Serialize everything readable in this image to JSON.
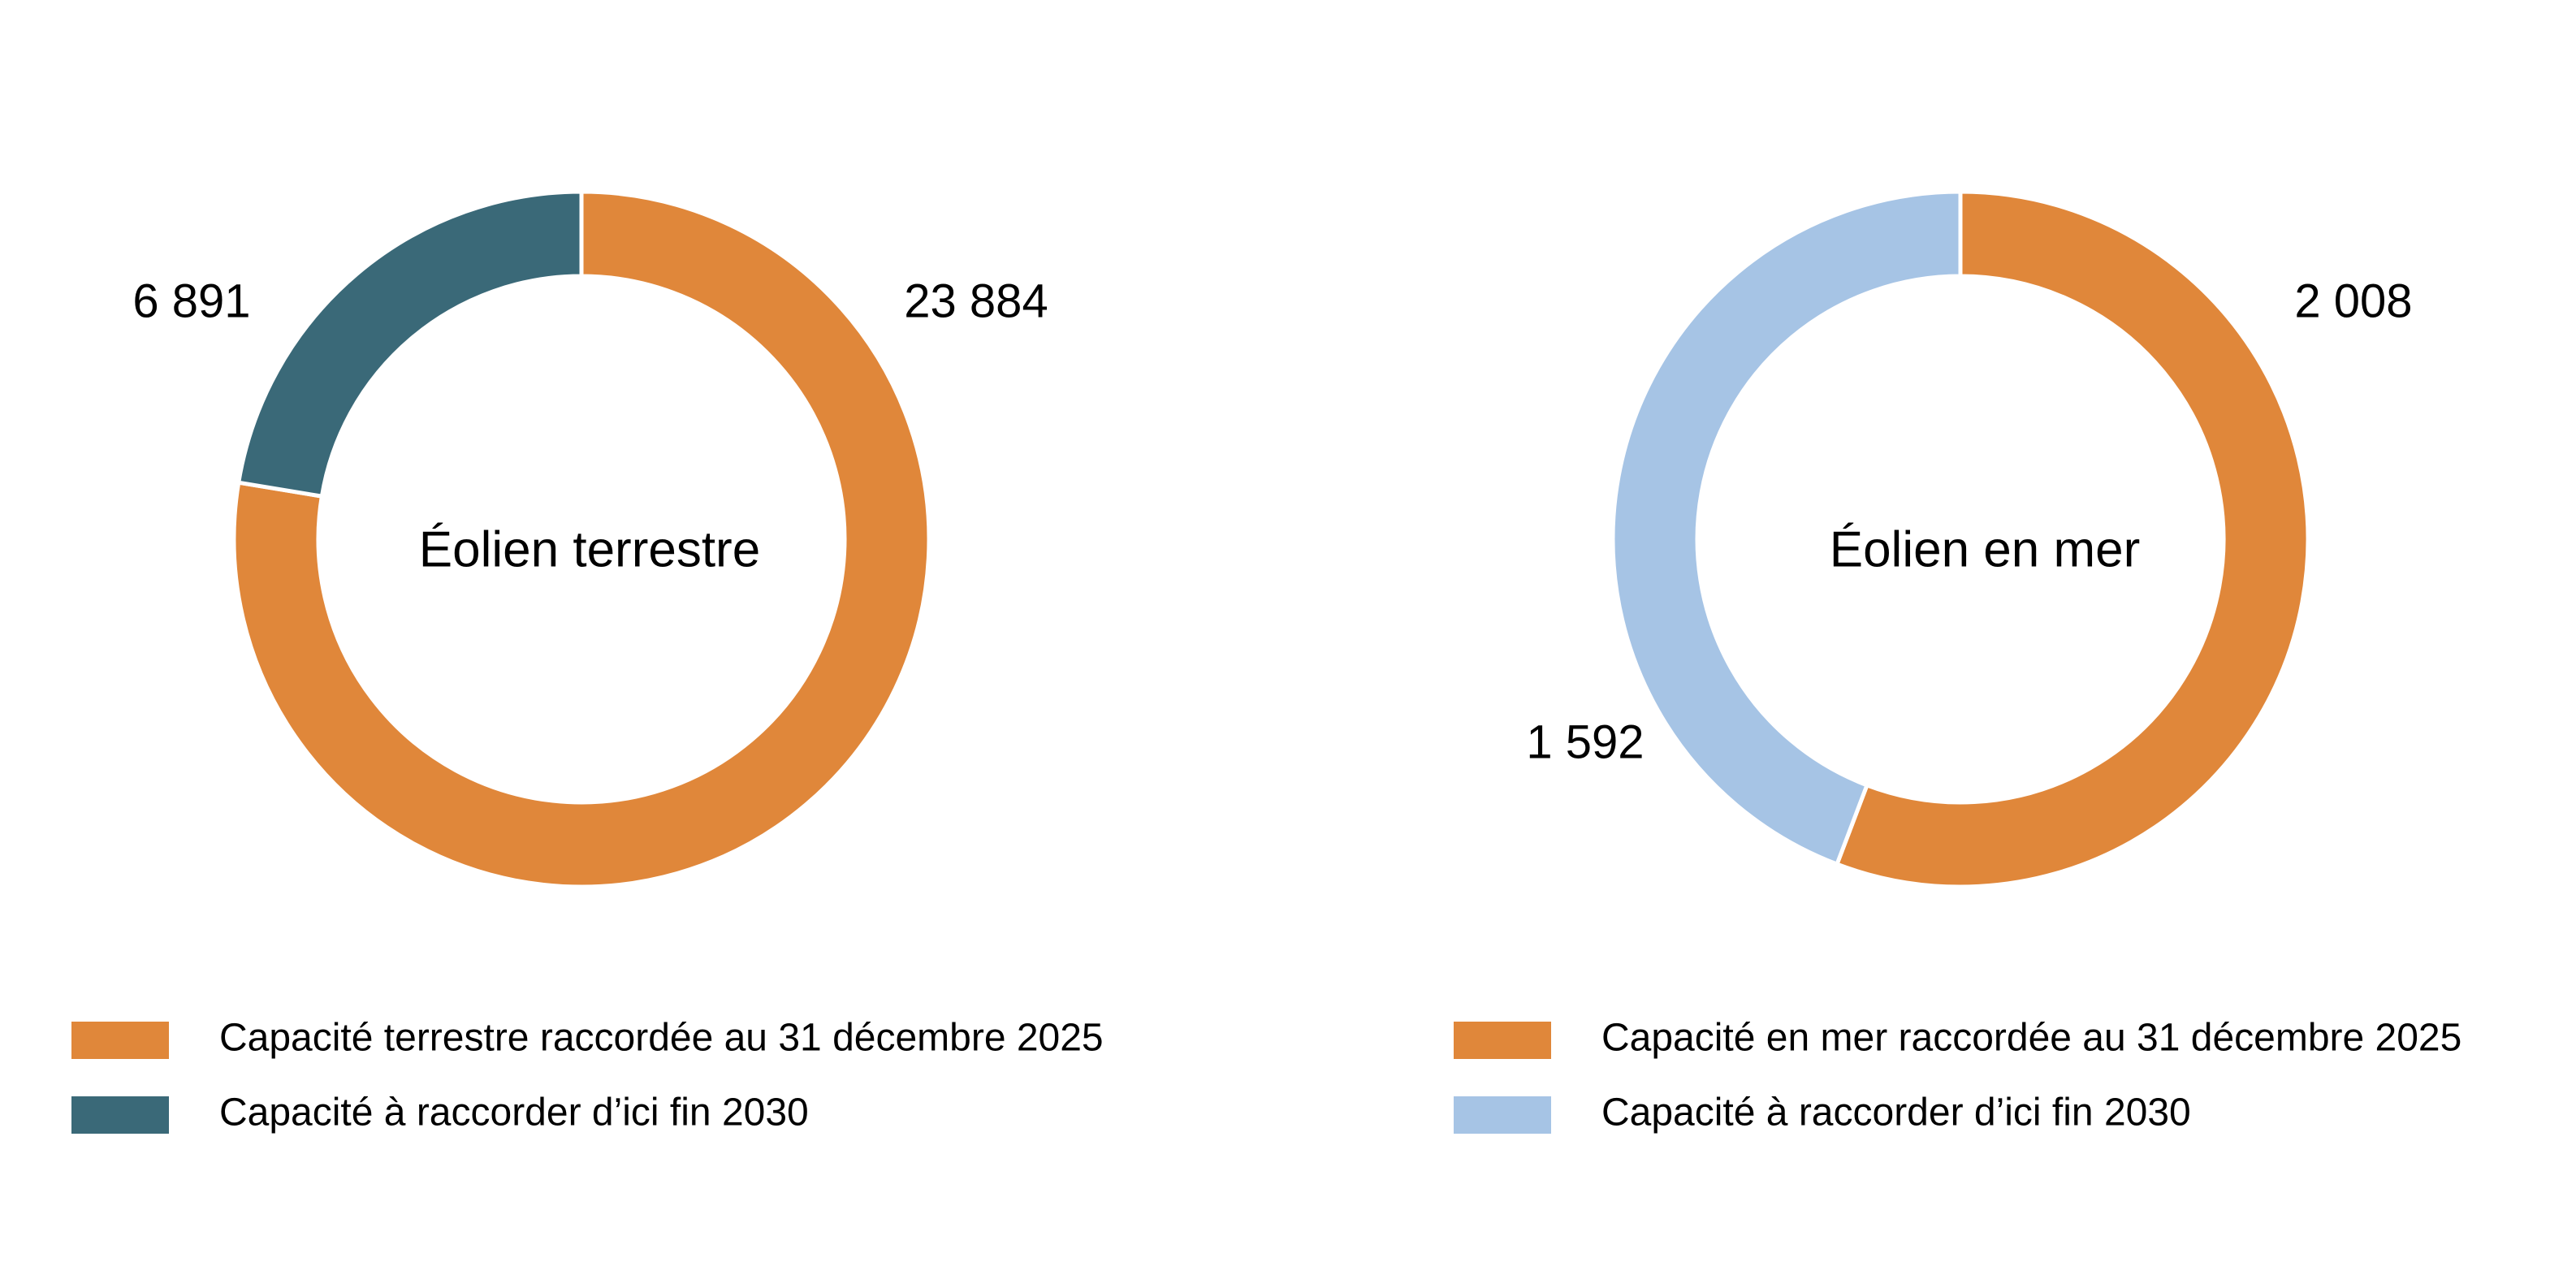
{
  "chart_data": [
    {
      "type": "pie",
      "title": "Éolien terrestre",
      "unit": "",
      "categories": [
        "Capacité terrestre raccordée au 31 décembre 2025",
        "Capacité à raccorder d’ici fin 2030"
      ],
      "values": [
        23884,
        6891
      ],
      "value_labels": [
        "23 884",
        "6 891"
      ],
      "colors": [
        "#E0873A",
        "#3A6978"
      ],
      "legend_position": "bottom"
    },
    {
      "type": "pie",
      "title": "Éolien en mer",
      "unit": "",
      "categories": [
        "Capacité en mer raccordée au 31 décembre 2025",
        "Capacité à raccorder d’ici fin 2030"
      ],
      "values": [
        2008,
        1592
      ],
      "value_labels": [
        "2 008",
        "1 592"
      ],
      "colors": [
        "#E0873A",
        "#A6C4E5"
      ],
      "legend_position": "bottom"
    }
  ]
}
